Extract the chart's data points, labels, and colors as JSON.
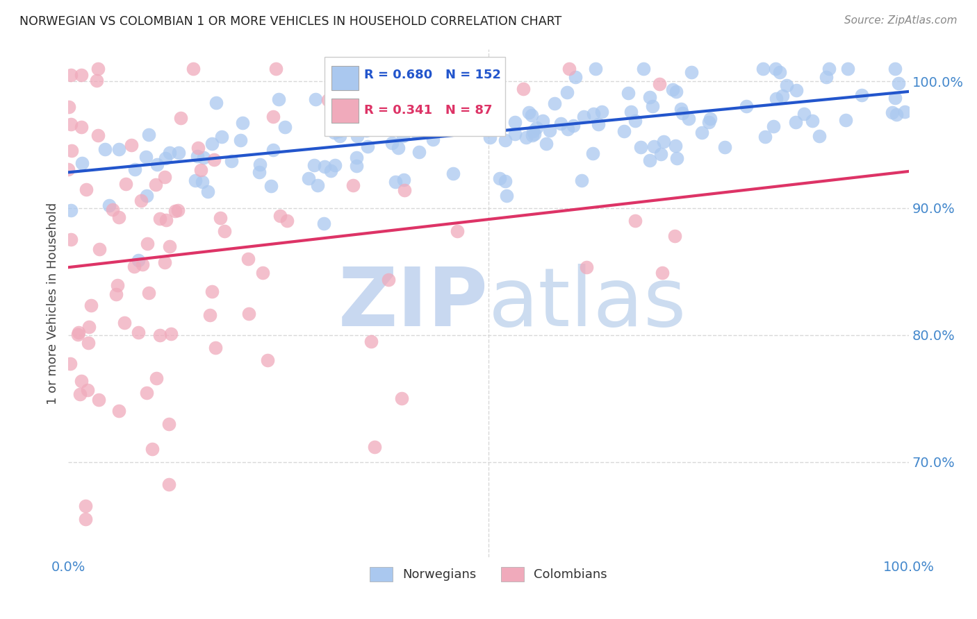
{
  "title": "NORWEGIAN VS COLOMBIAN 1 OR MORE VEHICLES IN HOUSEHOLD CORRELATION CHART",
  "source": "Source: ZipAtlas.com",
  "ylabel": "1 or more Vehicles in Household",
  "xlim": [
    0.0,
    1.0
  ],
  "ylim": [
    0.625,
    1.025
  ],
  "yticks": [
    0.7,
    0.8,
    0.9,
    1.0
  ],
  "ytick_labels": [
    "70.0%",
    "80.0%",
    "90.0%",
    "100.0%"
  ],
  "xtick_left_label": "0.0%",
  "xtick_right_label": "100.0%",
  "norwegian_R": 0.68,
  "norwegian_N": 152,
  "colombian_R": 0.341,
  "colombian_N": 87,
  "norwegian_color": "#aac8ef",
  "colombian_color": "#f0aabb",
  "norwegian_line_color": "#2255cc",
  "colombian_line_color": "#dd3366",
  "watermark_zip": "ZIP",
  "watermark_atlas": "atlas",
  "watermark_color": "#c8d8f0",
  "background_color": "#ffffff",
  "grid_color": "#d8d8d8",
  "title_color": "#222222",
  "axis_tick_color": "#4488cc",
  "legend_norw_color": "#2255cc",
  "legend_col_color": "#dd3366",
  "legend_label_color": "#111111"
}
